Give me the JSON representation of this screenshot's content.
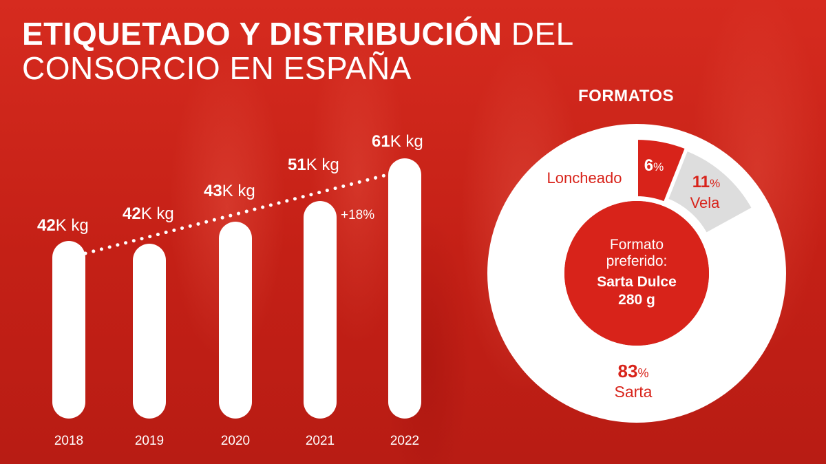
{
  "title": {
    "bold": "ETIQUETADO Y DISTRIBUCIÓN",
    "light": "DEL",
    "line2": "CONSORCIO EN ESPAÑA"
  },
  "chart_data": [
    {
      "type": "bar",
      "categories": [
        "2018",
        "2019",
        "2020",
        "2021",
        "2022"
      ],
      "values": [
        42,
        42,
        43,
        51,
        61
      ],
      "value_labels": [
        {
          "bold": "42",
          "rest": "K kg"
        },
        {
          "bold": "42",
          "rest": "K kg"
        },
        {
          "bold": "43",
          "rest": "K kg"
        },
        {
          "bold": "51",
          "rest": "K kg"
        },
        {
          "bold": "61",
          "rest": "K kg"
        }
      ],
      "annotation": "+18%",
      "trend_line": "dotted"
    },
    {
      "type": "pie",
      "title": "FORMATOS",
      "slices": [
        {
          "label": "Loncheado",
          "value": 6,
          "pct": "6%",
          "color": "#d8231a"
        },
        {
          "label": "Vela",
          "value": 11,
          "pct": "11%",
          "color": "#dddddd"
        },
        {
          "label": "Sarta",
          "value": 83,
          "pct": "83%",
          "color": "#ffffff"
        }
      ],
      "center_text": [
        "Formato",
        "preferido:"
      ],
      "center_bold": [
        "Sarta Dulce",
        "280 g"
      ]
    }
  ],
  "colors": {
    "background": "#c8241b",
    "bar": "#ffffff",
    "accent_red": "#d8231a",
    "vela_grey": "#dddddd"
  }
}
